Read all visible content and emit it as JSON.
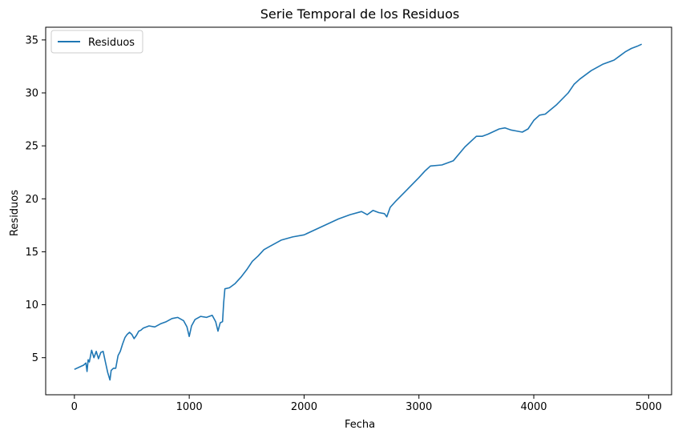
{
  "chart_data": {
    "type": "line",
    "title": "Serie Temporal de los Residuos",
    "xlabel": "Fecha",
    "ylabel": "Residuos",
    "xlim": [
      -250,
      5200
    ],
    "ylim": [
      1.5,
      36.2
    ],
    "xticks": [
      0,
      1000,
      2000,
      3000,
      4000,
      5000
    ],
    "xtick_labels": [
      "0",
      "1000",
      "2000",
      "3000",
      "4000",
      "5000"
    ],
    "yticks": [
      5,
      10,
      15,
      20,
      25,
      30,
      35
    ],
    "ytick_labels": [
      "5",
      "10",
      "15",
      "20",
      "25",
      "30",
      "35"
    ],
    "grid": false,
    "legend_position": "upper-left",
    "series": [
      {
        "name": "Residuos",
        "color": "#1f77b4",
        "x": [
          0,
          40,
          80,
          100,
          110,
          120,
          130,
          150,
          170,
          190,
          210,
          230,
          250,
          270,
          290,
          310,
          320,
          340,
          360,
          380,
          400,
          420,
          440,
          460,
          480,
          500,
          520,
          540,
          560,
          580,
          600,
          650,
          700,
          750,
          800,
          850,
          900,
          950,
          980,
          1000,
          1020,
          1050,
          1100,
          1150,
          1200,
          1230,
          1250,
          1270,
          1290,
          1300,
          1310,
          1350,
          1400,
          1450,
          1500,
          1550,
          1600,
          1650,
          1700,
          1800,
          1900,
          2000,
          2100,
          2200,
          2300,
          2400,
          2500,
          2550,
          2600,
          2650,
          2700,
          2720,
          2750,
          2800,
          2900,
          3000,
          3050,
          3100,
          3200,
          3300,
          3400,
          3500,
          3550,
          3600,
          3700,
          3750,
          3800,
          3850,
          3900,
          3950,
          4000,
          4050,
          4100,
          4200,
          4300,
          4350,
          4400,
          4500,
          4600,
          4700,
          4750,
          4800,
          4850,
          4900,
          4940
        ],
        "y": [
          3.9,
          4.1,
          4.3,
          4.5,
          3.7,
          4.8,
          4.6,
          5.7,
          5.0,
          5.6,
          4.9,
          5.5,
          5.6,
          4.6,
          3.6,
          2.9,
          3.8,
          4.0,
          4.0,
          5.2,
          5.6,
          6.3,
          6.9,
          7.2,
          7.4,
          7.2,
          6.8,
          7.1,
          7.5,
          7.6,
          7.8,
          8.0,
          7.9,
          8.2,
          8.4,
          8.7,
          8.8,
          8.5,
          7.9,
          7.0,
          8.0,
          8.6,
          8.9,
          8.8,
          9.0,
          8.4,
          7.5,
          8.3,
          8.4,
          10.2,
          11.5,
          11.6,
          12.0,
          12.6,
          13.3,
          14.1,
          14.6,
          15.2,
          15.5,
          16.1,
          16.4,
          16.6,
          17.1,
          17.6,
          18.1,
          18.5,
          18.8,
          18.5,
          18.9,
          18.7,
          18.6,
          18.3,
          19.2,
          19.8,
          20.9,
          22.0,
          22.6,
          23.1,
          23.2,
          23.6,
          24.9,
          25.9,
          25.9,
          26.1,
          26.6,
          26.7,
          26.5,
          26.4,
          26.3,
          26.6,
          27.4,
          27.9,
          28.0,
          28.9,
          30.0,
          30.8,
          31.3,
          32.1,
          32.7,
          33.1,
          33.5,
          33.9,
          34.2,
          34.4,
          34.6
        ]
      }
    ]
  }
}
